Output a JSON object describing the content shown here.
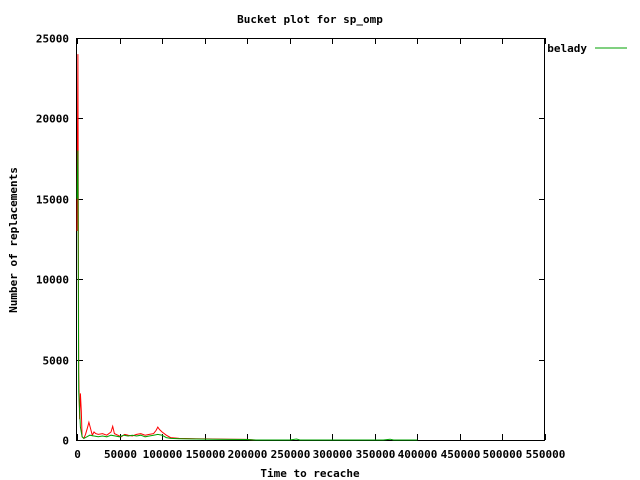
{
  "chart_data": {
    "type": "line",
    "title": "Bucket plot for sp_omp",
    "xlabel": "Time to recache",
    "ylabel": "Number of replacements",
    "xlim": [
      0,
      550000
    ],
    "ylim": [
      0,
      25000
    ],
    "xticks": [
      0,
      50000,
      100000,
      150000,
      200000,
      250000,
      300000,
      350000,
      400000,
      450000,
      500000,
      550000
    ],
    "yticks": [
      0,
      5000,
      10000,
      15000,
      20000,
      25000
    ],
    "legend_position": "top-right",
    "series": [
      {
        "name": "",
        "color": "#ff0000",
        "x": [
          0,
          1000,
          2000,
          3000,
          4000,
          5000,
          6000,
          8000,
          10000,
          12000,
          14000,
          16000,
          18000,
          20000,
          22000,
          25000,
          30000,
          35000,
          40000,
          42000,
          44000,
          48000,
          52000,
          56000,
          60000,
          65000,
          70000,
          75000,
          80000,
          85000,
          90000,
          93000,
          95000,
          97000,
          100000,
          105000,
          110000,
          120000,
          140000,
          160000,
          180000,
          200000,
          210000
        ],
        "y": [
          13000,
          24000,
          4200,
          1300,
          2900,
          1800,
          200,
          100,
          350,
          700,
          1100,
          700,
          300,
          500,
          400,
          350,
          400,
          300,
          500,
          850,
          400,
          300,
          200,
          350,
          300,
          250,
          350,
          400,
          300,
          350,
          400,
          600,
          800,
          650,
          500,
          300,
          150,
          100,
          80,
          60,
          50,
          40,
          0
        ]
      },
      {
        "name": "belady",
        "color": "#00a000",
        "x": [
          0,
          1000,
          2000,
          4000,
          6000,
          8000,
          10000,
          15000,
          20000,
          25000,
          30000,
          35000,
          40000,
          45000,
          50000,
          55000,
          60000,
          65000,
          70000,
          75000,
          80000,
          85000,
          90000,
          95000,
          100000,
          105000,
          110000,
          120000,
          140000,
          160000,
          180000,
          200000,
          210000,
          250000,
          258000,
          262000,
          300000,
          360000,
          368000,
          372000,
          400000
        ],
        "y": [
          15000,
          18000,
          3000,
          800,
          200,
          100,
          150,
          300,
          250,
          200,
          250,
          200,
          300,
          250,
          200,
          300,
          250,
          300,
          250,
          300,
          200,
          250,
          300,
          350,
          300,
          150,
          100,
          80,
          60,
          50,
          40,
          30,
          0,
          0,
          60,
          0,
          0,
          0,
          50,
          0,
          0
        ]
      }
    ]
  }
}
